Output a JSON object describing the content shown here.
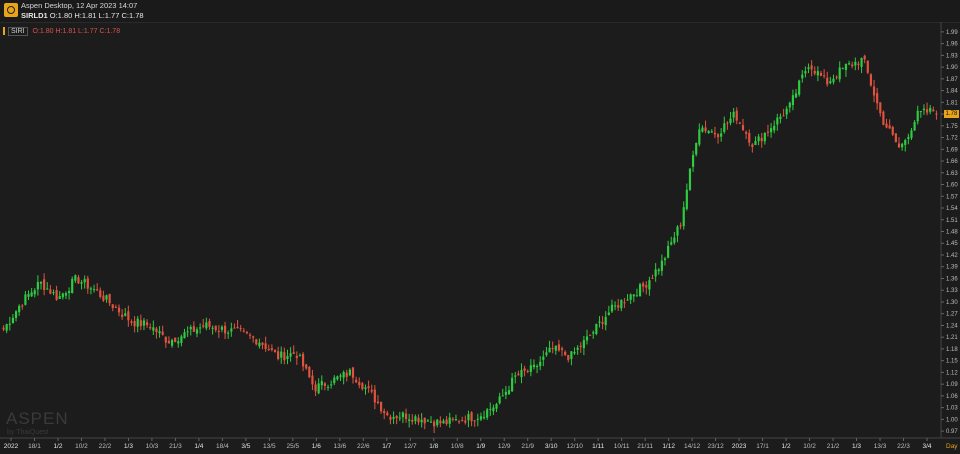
{
  "window": {
    "title": "Aspen Desktop, 12 Apr 2023 14:07",
    "symbol": "SIRLD1",
    "ohlc_text": "O:1.80 H:1.81 L:1.77 C:1.78"
  },
  "legend": {
    "symbol": "SIRI",
    "values_text": "O:1.80 H:1.81 L:1.77 C:1.78"
  },
  "watermark": {
    "brand": "ASPEN",
    "sub": "by ThaiQuest"
  },
  "period_label": "Day",
  "last_price_label": "1.78",
  "colors": {
    "background": "#1c1c1c",
    "up": "#2ecc40",
    "down": "#e2533f",
    "accent": "#e8a41a",
    "axis_text": "#bdbdbd"
  },
  "chart_data": {
    "type": "candlestick",
    "y_ticks": [
      "0.97",
      "1.00",
      "1.03",
      "1.06",
      "1.09",
      "1.12",
      "1.15",
      "1.18",
      "1.21",
      "1.24",
      "1.27",
      "1.30",
      "1.33",
      "1.36",
      "1.39",
      "1.42",
      "1.45",
      "1.48",
      "1.51",
      "1.54",
      "1.57",
      "1.60",
      "1.63",
      "1.66",
      "1.69",
      "1.72",
      "1.75",
      "1.78",
      "1.81",
      "1.84",
      "1.87",
      "1.90",
      "1.93",
      "1.96",
      "1.99"
    ],
    "ylim": [
      0.955,
      2.005
    ],
    "x_labels": [
      {
        "text": "2022",
        "year": true
      },
      {
        "text": "18/1"
      },
      {
        "text": "1/2",
        "year": true
      },
      {
        "text": "10/2"
      },
      {
        "text": "22/2"
      },
      {
        "text": "1/3",
        "year": true
      },
      {
        "text": "10/3"
      },
      {
        "text": "21/3"
      },
      {
        "text": "1/4",
        "year": true
      },
      {
        "text": "18/4"
      },
      {
        "text": "3/5",
        "year": true
      },
      {
        "text": "13/5"
      },
      {
        "text": "25/5"
      },
      {
        "text": "1/6",
        "year": true
      },
      {
        "text": "13/6"
      },
      {
        "text": "22/6"
      },
      {
        "text": "1/7",
        "year": true
      },
      {
        "text": "12/7"
      },
      {
        "text": "1/8",
        "year": true
      },
      {
        "text": "10/8"
      },
      {
        "text": "1/9",
        "year": true
      },
      {
        "text": "12/9"
      },
      {
        "text": "21/9"
      },
      {
        "text": "3/10",
        "year": true
      },
      {
        "text": "12/10"
      },
      {
        "text": "1/11",
        "year": true
      },
      {
        "text": "10/11"
      },
      {
        "text": "21/11"
      },
      {
        "text": "1/12",
        "year": true
      },
      {
        "text": "14/12"
      },
      {
        "text": "23/12"
      },
      {
        "text": "2023",
        "year": true
      },
      {
        "text": "17/1"
      },
      {
        "text": "1/2",
        "year": true
      },
      {
        "text": "10/2"
      },
      {
        "text": "21/2"
      },
      {
        "text": "1/3",
        "year": true
      },
      {
        "text": "13/3"
      },
      {
        "text": "22/3"
      },
      {
        "text": "3/4",
        "year": true
      }
    ],
    "close_anchors": [
      1.23,
      1.3,
      1.35,
      1.31,
      1.36,
      1.33,
      1.29,
      1.25,
      1.24,
      1.2,
      1.22,
      1.24,
      1.23,
      1.22,
      1.2,
      1.16,
      1.17,
      1.08,
      1.1,
      1.12,
      1.07,
      1.01,
      1.01,
      1.0,
      0.99,
      1.0,
      1.01,
      1.04,
      1.11,
      1.13,
      1.18,
      1.16,
      1.21,
      1.27,
      1.31,
      1.34,
      1.4,
      1.5,
      1.75,
      1.73,
      1.78,
      1.7,
      1.75,
      1.8,
      1.91,
      1.86,
      1.9,
      1.92,
      1.77,
      1.69,
      1.78,
      1.79
    ]
  }
}
